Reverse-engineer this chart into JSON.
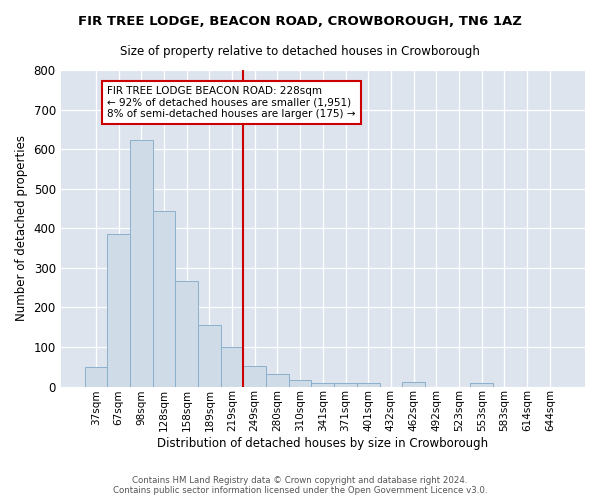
{
  "title": "FIR TREE LODGE, BEACON ROAD, CROWBOROUGH, TN6 1AZ",
  "subtitle": "Size of property relative to detached houses in Crowborough",
  "xlabel": "Distribution of detached houses by size in Crowborough",
  "ylabel": "Number of detached properties",
  "bar_color": "#cfdce8",
  "bar_edgecolor": "#8ab0cc",
  "background_color": "#dde4ee",
  "grid_color": "#ffffff",
  "fig_background": "#ffffff",
  "categories": [
    "37sqm",
    "67sqm",
    "98sqm",
    "128sqm",
    "158sqm",
    "189sqm",
    "219sqm",
    "249sqm",
    "280sqm",
    "310sqm",
    "341sqm",
    "371sqm",
    "401sqm",
    "432sqm",
    "462sqm",
    "492sqm",
    "523sqm",
    "553sqm",
    "583sqm",
    "614sqm",
    "644sqm"
  ],
  "values": [
    50,
    385,
    623,
    443,
    267,
    156,
    99,
    52,
    31,
    16,
    10,
    10,
    10,
    0,
    11,
    0,
    0,
    8,
    0,
    0,
    0
  ],
  "vline_color": "#cc0000",
  "annotation_text": "FIR TREE LODGE BEACON ROAD: 228sqm\n← 92% of detached houses are smaller (1,951)\n8% of semi-detached houses are larger (175) →",
  "annotation_box_color": "#ffffff",
  "annotation_box_edgecolor": "#cc0000",
  "footnote": "Contains HM Land Registry data © Crown copyright and database right 2024.\nContains public sector information licensed under the Open Government Licence v3.0.",
  "ylim": [
    0,
    800
  ],
  "yticks": [
    0,
    100,
    200,
    300,
    400,
    500,
    600,
    700,
    800
  ]
}
